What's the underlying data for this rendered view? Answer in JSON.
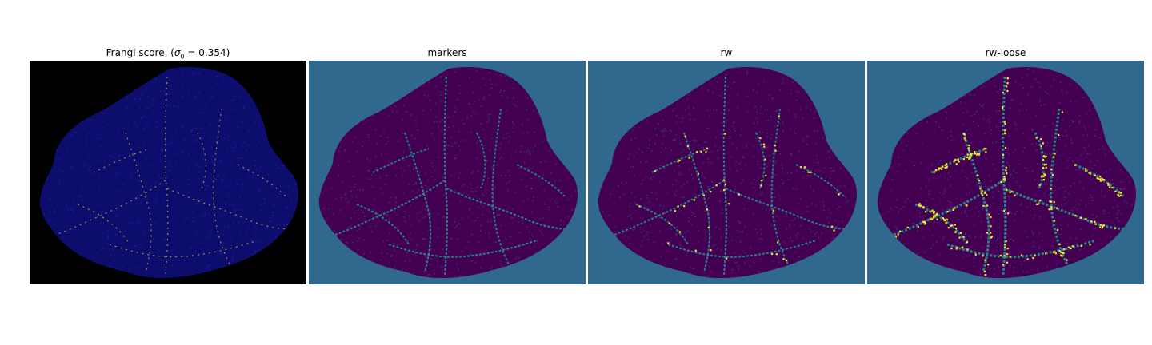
{
  "panels": [
    {
      "title_pre": "Frangi score, (",
      "title_sigma": "σ",
      "title_sub": "0",
      "title_post": " = 0.354)",
      "colors": {
        "background": "#000000",
        "fill": "#0d0d6e",
        "accent": "#c8a040"
      }
    },
    {
      "title": "markers",
      "colors": {
        "background": "#31688e",
        "fill": "#440154",
        "accent": "#21918c"
      }
    },
    {
      "title": "rw",
      "colors": {
        "background": "#31688e",
        "fill": "#440154",
        "accent": "#21918c",
        "highlight": "#fde725"
      }
    },
    {
      "title": "rw-loose",
      "colors": {
        "background": "#31688e",
        "fill": "#440154",
        "accent": "#21918c",
        "highlight": "#fde725"
      }
    }
  ]
}
